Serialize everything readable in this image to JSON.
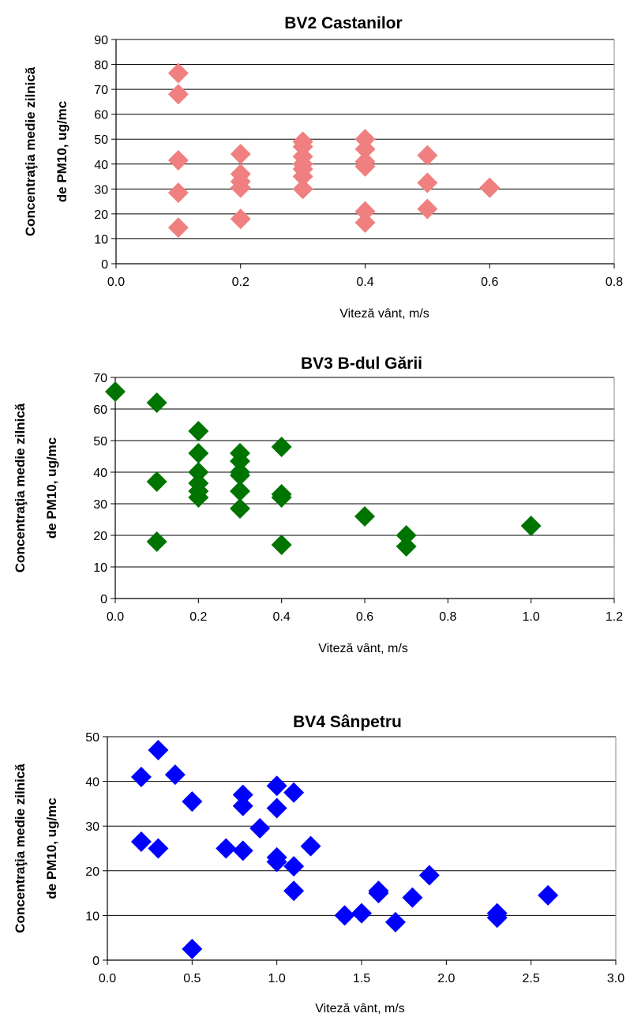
{
  "chart_data": [
    {
      "type": "scatter",
      "title": "BV2 Castanilor",
      "xlabel": "Viteză vânt, m/s",
      "ylabel_lines": [
        "Concentraţia medie zilnică",
        "de PM10, ug/mc"
      ],
      "xlim": [
        0,
        0.8
      ],
      "ylim": [
        0,
        90
      ],
      "x_ticks": [
        "0.0",
        "0.2",
        "0.4",
        "0.6",
        "0.8"
      ],
      "y_ticks": [
        "0",
        "10",
        "20",
        "30",
        "40",
        "50",
        "60",
        "70",
        "80",
        "90"
      ],
      "grid": "horizontal",
      "marker": "diamond",
      "color": "#F08080",
      "points": [
        [
          0.1,
          76.5
        ],
        [
          0.1,
          68
        ],
        [
          0.1,
          41.5
        ],
        [
          0.1,
          28.5
        ],
        [
          0.1,
          14.5
        ],
        [
          0.2,
          44
        ],
        [
          0.2,
          36
        ],
        [
          0.2,
          33
        ],
        [
          0.2,
          30.5
        ],
        [
          0.2,
          18
        ],
        [
          0.3,
          49
        ],
        [
          0.3,
          47
        ],
        [
          0.3,
          43
        ],
        [
          0.3,
          40
        ],
        [
          0.3,
          38
        ],
        [
          0.3,
          35
        ],
        [
          0.3,
          30
        ],
        [
          0.4,
          50
        ],
        [
          0.4,
          46
        ],
        [
          0.4,
          41
        ],
        [
          0.4,
          39
        ],
        [
          0.4,
          21
        ],
        [
          0.4,
          16.5
        ],
        [
          0.5,
          43.5
        ],
        [
          0.5,
          32.5
        ],
        [
          0.5,
          22
        ],
        [
          0.6,
          30.5
        ]
      ]
    },
    {
      "type": "scatter",
      "title": "BV3 B-dul Gării",
      "xlabel": "Viteză vânt, m/s",
      "ylabel_lines": [
        "Concentraţia medie zilnică",
        "de PM10, ug/mc"
      ],
      "xlim": [
        0,
        1.2
      ],
      "ylim": [
        0,
        70
      ],
      "x_ticks": [
        "0.0",
        "0.2",
        "0.4",
        "0.6",
        "0.8",
        "1.0",
        "1.2"
      ],
      "y_ticks": [
        "0",
        "10",
        "20",
        "30",
        "40",
        "50",
        "60",
        "70"
      ],
      "grid": "horizontal",
      "marker": "diamond",
      "color": "#007400",
      "points": [
        [
          0.0,
          65.5
        ],
        [
          0.1,
          62
        ],
        [
          0.1,
          37
        ],
        [
          0.1,
          18
        ],
        [
          0.2,
          53
        ],
        [
          0.2,
          46
        ],
        [
          0.2,
          40
        ],
        [
          0.2,
          36.5
        ],
        [
          0.2,
          34
        ],
        [
          0.2,
          32
        ],
        [
          0.3,
          46
        ],
        [
          0.3,
          43.5
        ],
        [
          0.3,
          40
        ],
        [
          0.3,
          39
        ],
        [
          0.3,
          34
        ],
        [
          0.3,
          28.5
        ],
        [
          0.4,
          48
        ],
        [
          0.4,
          33
        ],
        [
          0.4,
          32
        ],
        [
          0.4,
          17
        ],
        [
          0.6,
          26
        ],
        [
          0.7,
          20
        ],
        [
          0.7,
          16.5
        ],
        [
          1.0,
          23
        ]
      ]
    },
    {
      "type": "scatter",
      "title": "BV4 Sânpetru",
      "xlabel": "Viteză vânt, m/s",
      "ylabel_lines": [
        "Concentraţia medie zilnică",
        "de PM10, ug/mc"
      ],
      "xlim": [
        0,
        3.0
      ],
      "ylim": [
        0,
        50
      ],
      "x_ticks": [
        "0.0",
        "0.5",
        "1.0",
        "1.5",
        "2.0",
        "2.5",
        "3.0"
      ],
      "y_ticks": [
        "0",
        "10",
        "20",
        "30",
        "40",
        "50"
      ],
      "grid": "horizontal",
      "marker": "diamond",
      "color": "#0000FF",
      "points": [
        [
          0.2,
          41
        ],
        [
          0.2,
          26.5
        ],
        [
          0.3,
          47
        ],
        [
          0.3,
          25
        ],
        [
          0.4,
          41.5
        ],
        [
          0.5,
          35.5
        ],
        [
          0.5,
          2.5
        ],
        [
          0.7,
          25
        ],
        [
          0.8,
          37
        ],
        [
          0.8,
          34.5
        ],
        [
          0.8,
          24.5
        ],
        [
          0.9,
          29.5
        ],
        [
          1.0,
          39
        ],
        [
          1.0,
          34
        ],
        [
          1.0,
          23
        ],
        [
          1.0,
          22
        ],
        [
          1.1,
          37.5
        ],
        [
          1.1,
          21
        ],
        [
          1.1,
          15.5
        ],
        [
          1.2,
          25.5
        ],
        [
          1.4,
          10
        ],
        [
          1.5,
          10.5
        ],
        [
          1.6,
          15.5
        ],
        [
          1.6,
          15
        ],
        [
          1.7,
          8.5
        ],
        [
          1.8,
          14
        ],
        [
          1.9,
          19
        ],
        [
          2.3,
          10.5
        ],
        [
          2.3,
          9.5
        ],
        [
          2.6,
          14.5
        ]
      ]
    }
  ]
}
